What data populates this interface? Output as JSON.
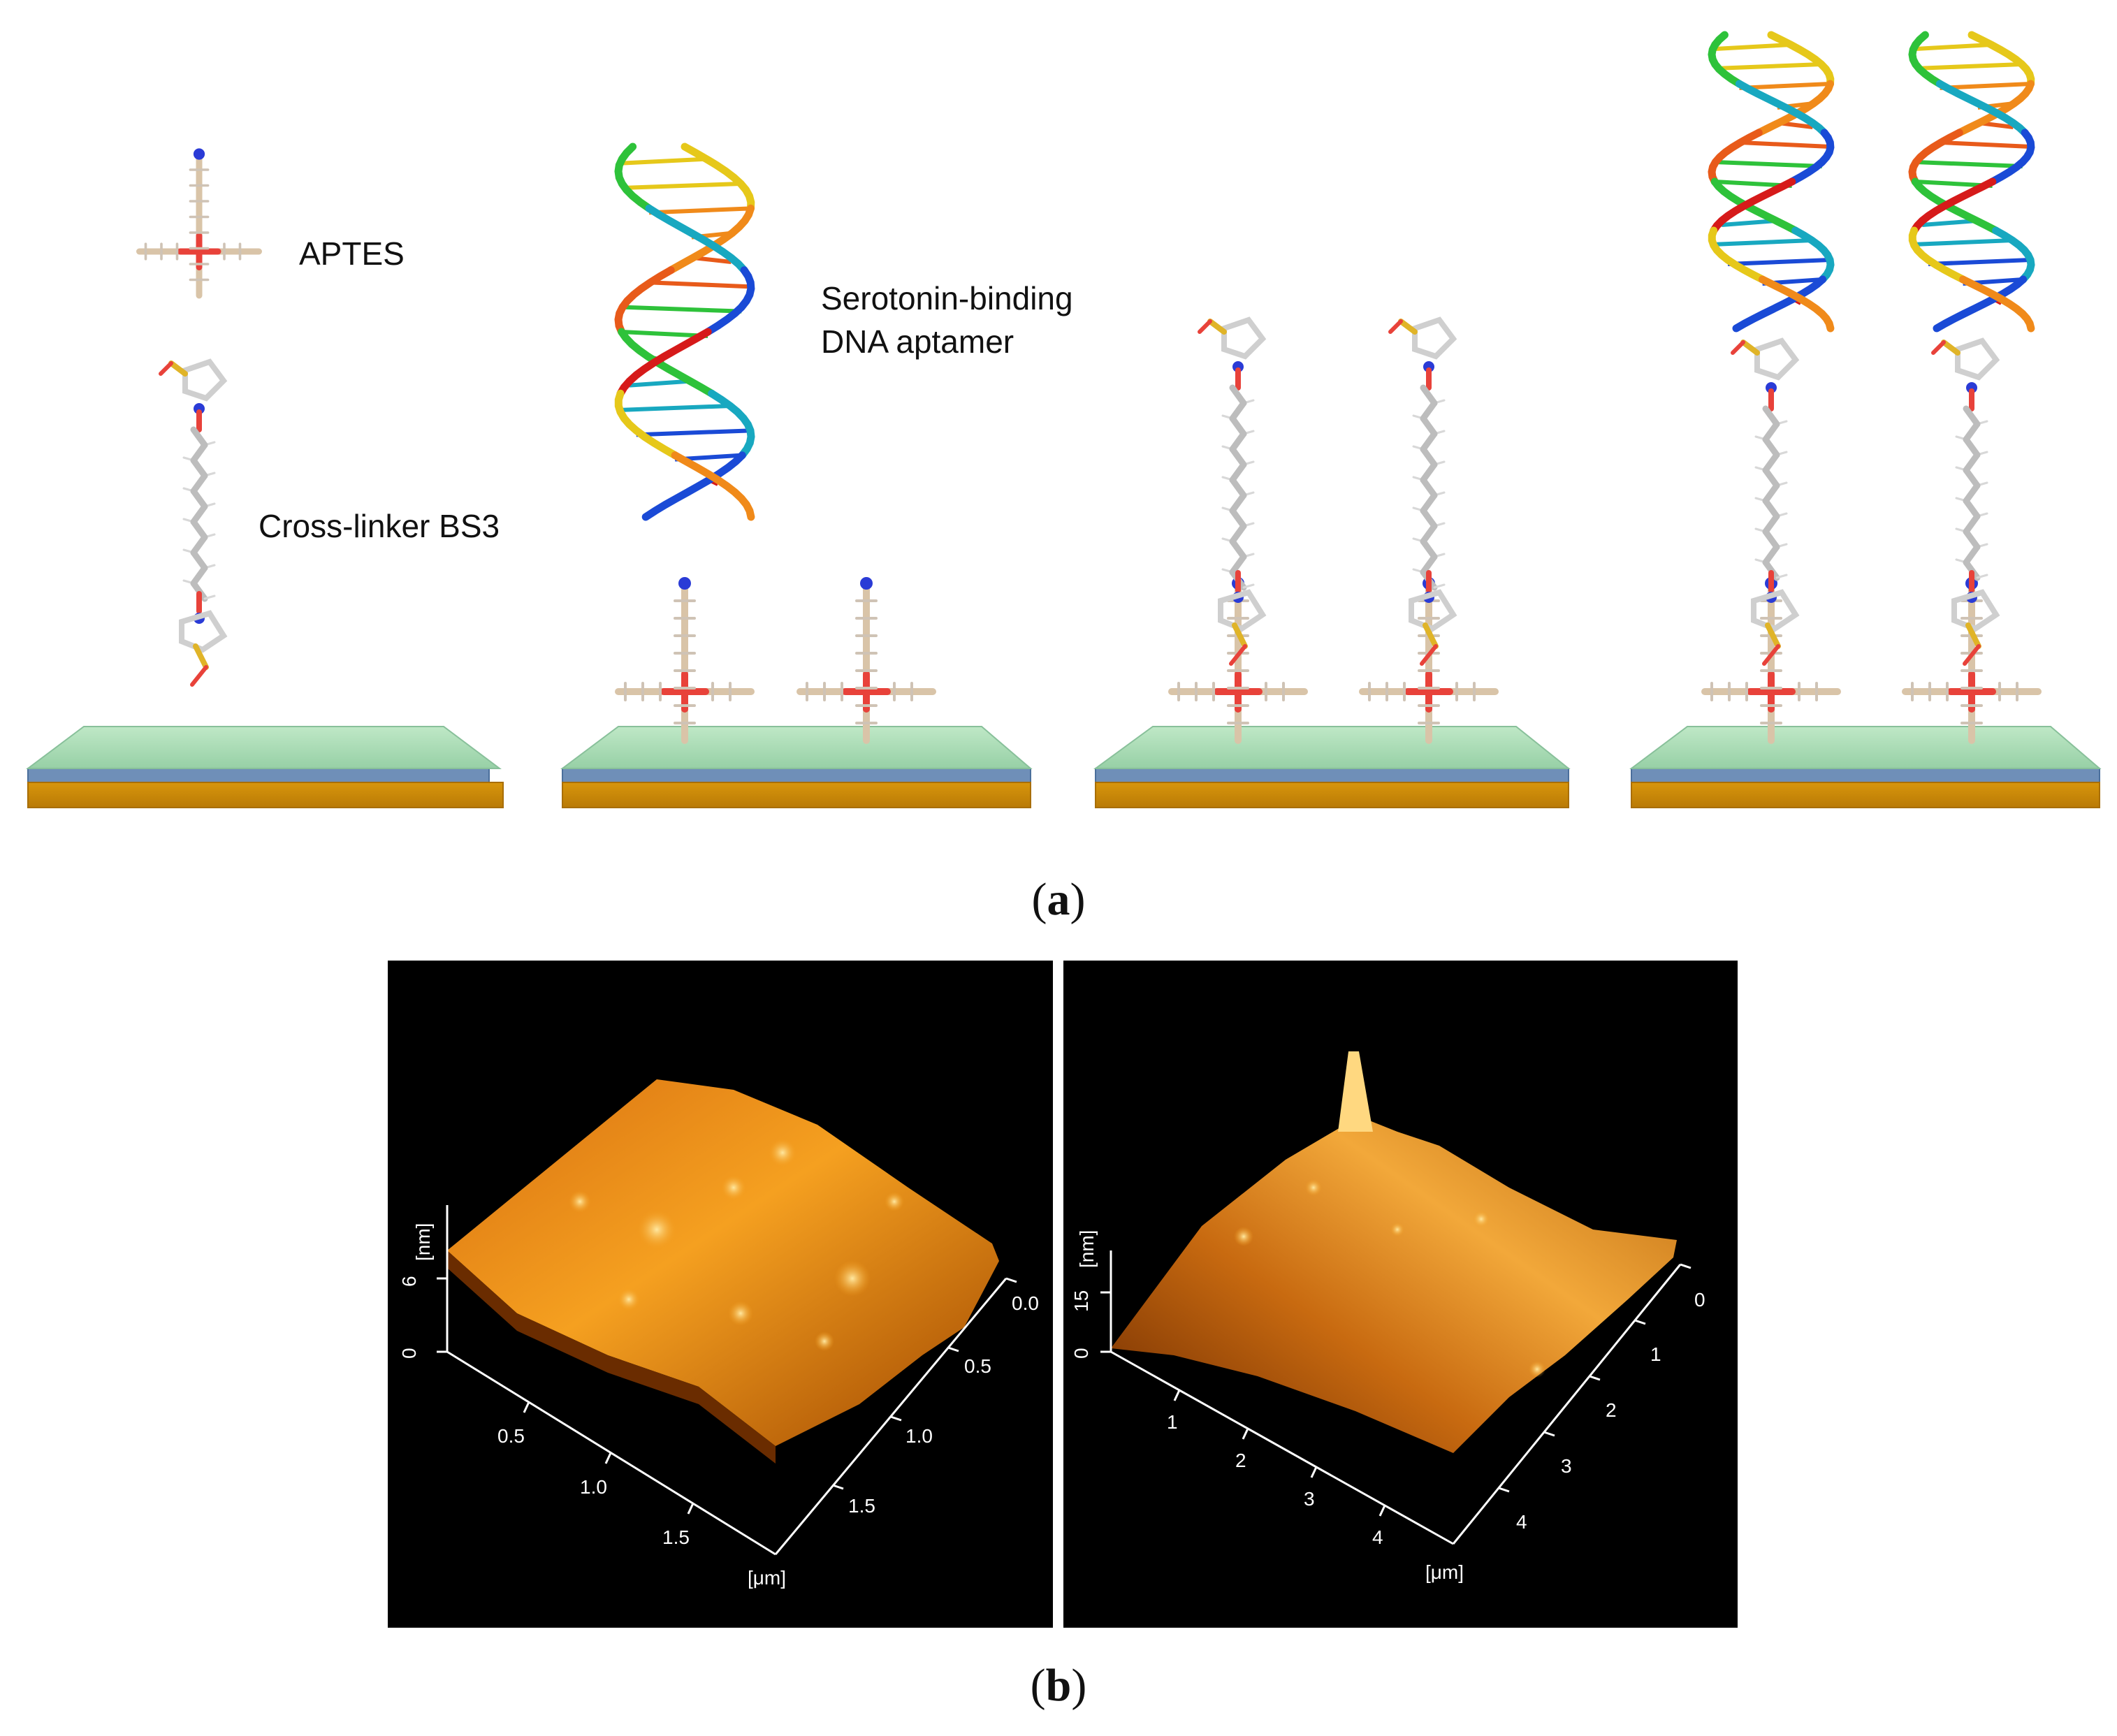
{
  "labels": {
    "aptes": "APTES",
    "aptamer_line1": "Serotonin-binding",
    "aptamer_line2": "DNA aptamer",
    "crosslinker": "Cross-linker BS3"
  },
  "captions": {
    "a_letter": "a",
    "b_letter": "b"
  },
  "afm_left": {
    "z_ticks": [
      "0",
      "6"
    ],
    "z_unit": "[nm]",
    "x_ticks": [
      "0.5",
      "1.0",
      "1.5"
    ],
    "y_ticks": [
      "0.0",
      "0.5",
      "1.0",
      "1.5"
    ],
    "xy_unit": "[μm]"
  },
  "afm_right": {
    "z_ticks": [
      "0",
      "15"
    ],
    "z_unit": "[nm]",
    "x_ticks": [
      "1",
      "2",
      "3",
      "4"
    ],
    "y_ticks": [
      "0",
      "1",
      "2",
      "3",
      "4"
    ],
    "xy_unit": "[μm]"
  },
  "colors": {
    "substrate_top": "#a8dcb4",
    "substrate_mid": "#6f8fb8",
    "substrate_base": "#c98a0a",
    "afm_surface_dark": "#7a3200",
    "afm_surface_light": "#ffc850"
  }
}
